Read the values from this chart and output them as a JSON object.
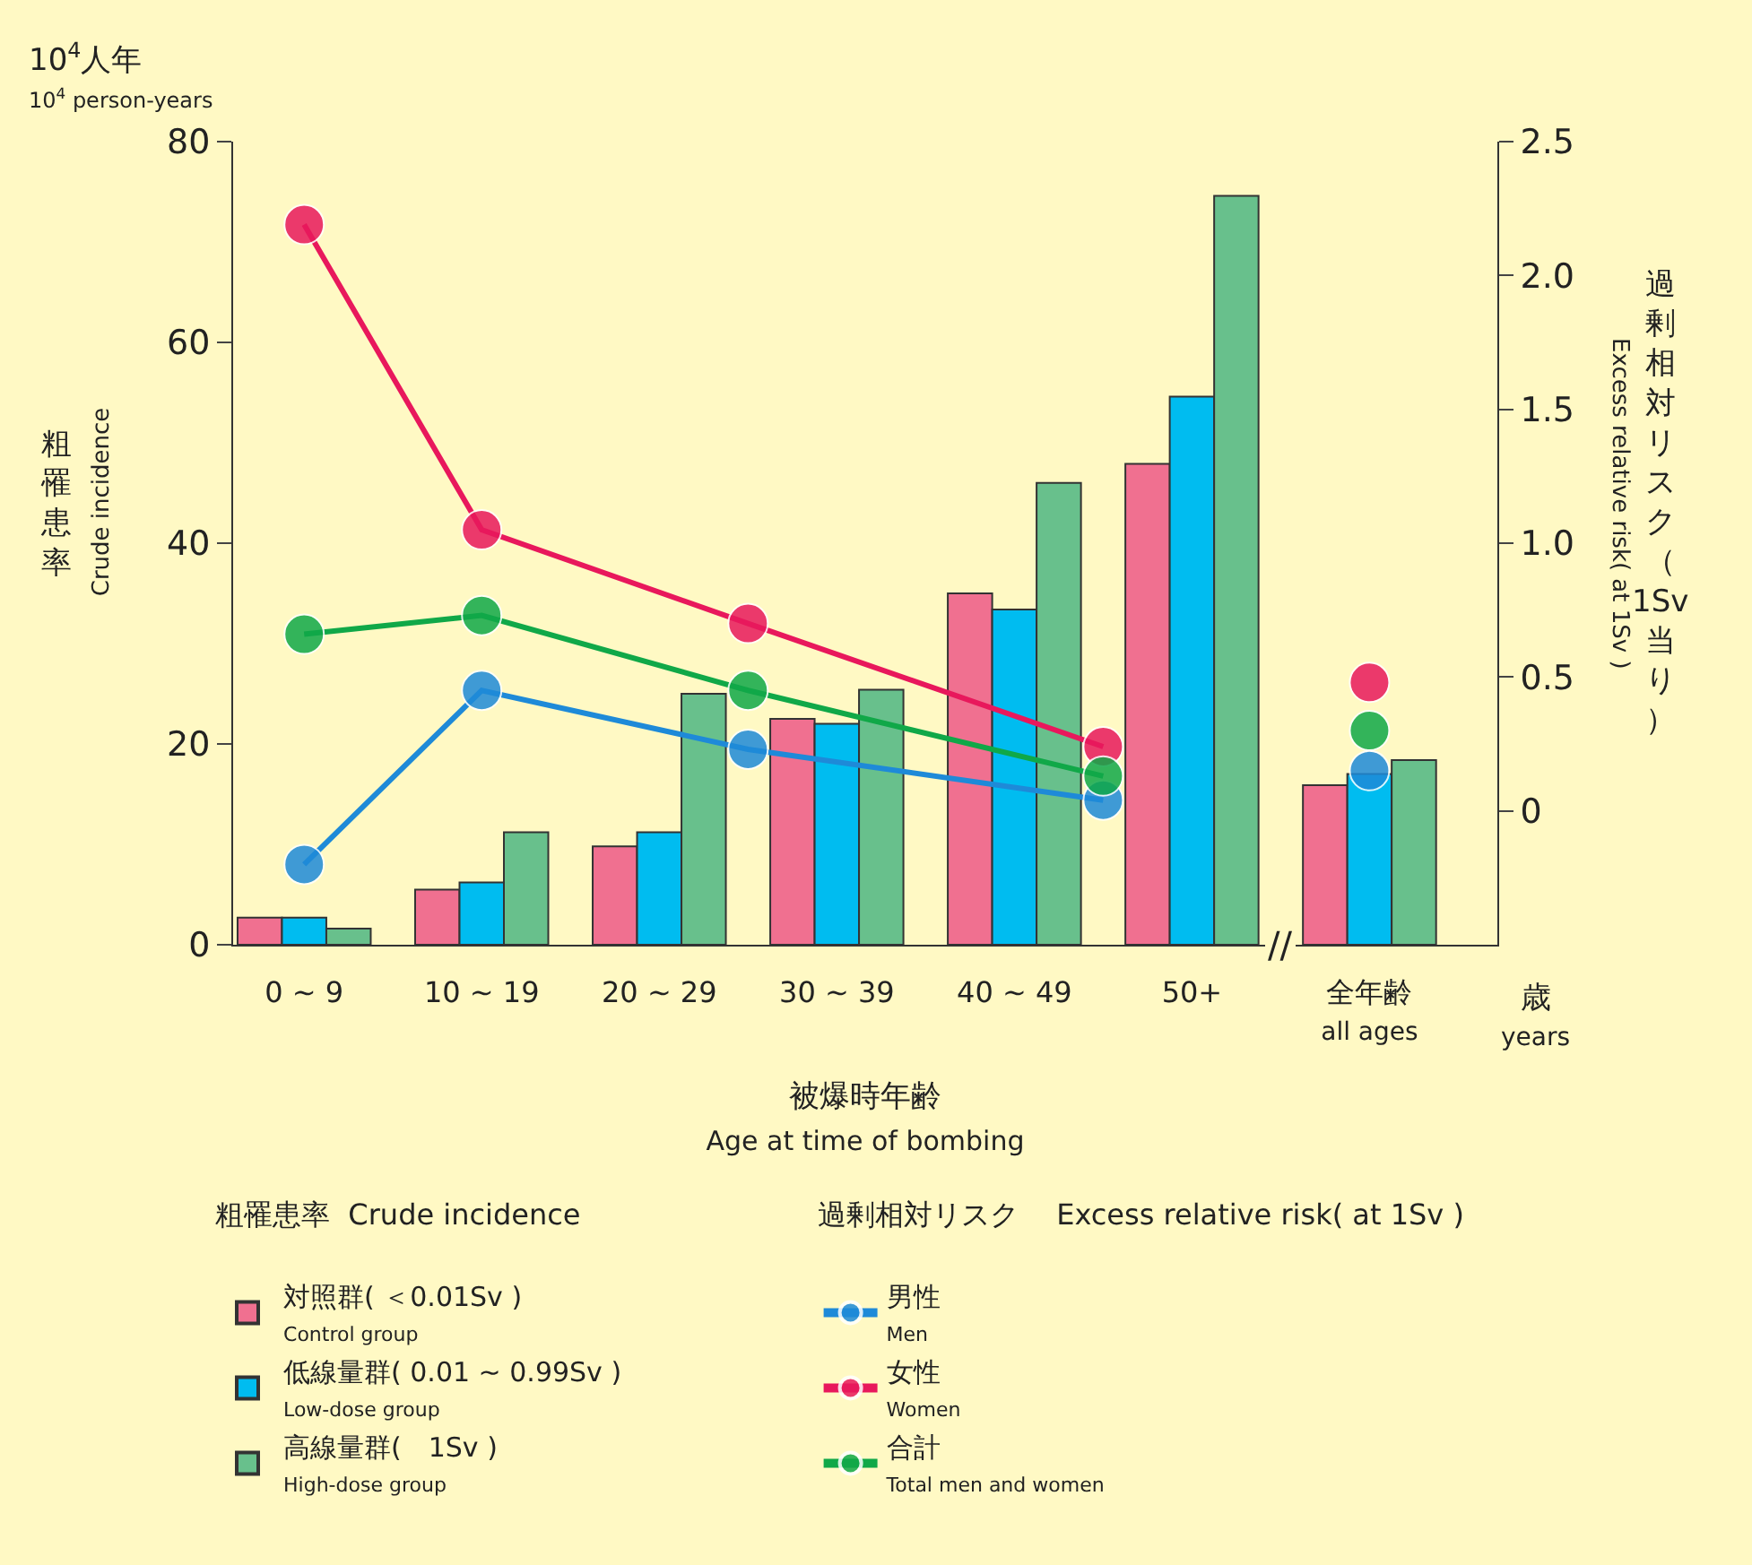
{
  "chart_data": {
    "type": "bar",
    "categories": [
      "0 ~ 9",
      null,
      "10 ~ 19",
      null,
      "20 ~ 29",
      null,
      "30 ~ 39",
      null,
      "40 ~ 49",
      null,
      "50+",
      null,
      "全年齢\nall ages"
    ],
    "ylim": [
      0,
      80
    ],
    "yticks": [
      0,
      20,
      40,
      60,
      80
    ],
    "y2lim": [
      -0.5,
      2.5
    ],
    "y2ticks": [
      {
        "value": 0,
        "label": "0"
      },
      {
        "value": 0.5,
        "label": "0.5"
      },
      {
        "value": 1,
        "label": "1.0"
      },
      {
        "value": 1.5,
        "label": "1.5"
      },
      {
        "value": 2,
        "label": "2.0"
      },
      {
        "value": 2.5,
        "label": "2.5"
      }
    ],
    "xlabel": "被爆時年齢\nAge at time of bombing",
    "ylabel": "粗罹患率\nCrude incidence",
    "y2label": "過剰相対リスク（1Sv当り）\nExcess relative risk( at 1Sv )",
    "series": [
      {
        "name": "対照群( ＜0.01Sv )\nControl group",
        "color": "#f07090",
        "values": [
          2.7,
          null,
          5.5,
          null,
          9.8,
          null,
          22.5,
          null,
          35,
          null,
          47.9,
          null,
          15.9
        ]
      },
      {
        "name": "低線量群( 0.01 ~ 0.99Sv )\nLow-dose group",
        "color": "#00bcf0",
        "values": [
          2.7,
          null,
          6.2,
          null,
          11.2,
          null,
          22,
          null,
          33.4,
          null,
          54.6,
          null,
          17
        ]
      },
      {
        "name": "高線量群(　1Sv )\nHigh-dose group",
        "color": "#68c08c",
        "values": [
          1.6,
          null,
          11.2,
          null,
          25,
          null,
          25.4,
          null,
          46,
          null,
          74.6,
          null,
          18.4
        ]
      },
      {
        "name": "男性\nMen",
        "type": "line",
        "axis": "y2",
        "color": "#1e8ad8",
        "values": [
          -0.2,
          null,
          0.45,
          null,
          null,
          0.23,
          null,
          null,
          null,
          0.04,
          null,
          null,
          null
        ]
      },
      {
        "name": "女性\nWomen",
        "type": "line",
        "axis": "y2",
        "color": "#e8185c",
        "values": [
          2.19,
          null,
          1.05,
          null,
          null,
          0.7,
          null,
          null,
          null,
          0.24,
          null,
          null,
          null
        ]
      },
      {
        "name": "合計\nTotal men and women",
        "type": "line",
        "axis": "y2",
        "color": "#10a848",
        "values": [
          0.66,
          null,
          0.73,
          null,
          null,
          0.45,
          null,
          null,
          null,
          0.13,
          null,
          null,
          null
        ]
      },
      {
        "type": "scatter",
        "axis": "y2",
        "color": "#1e8ad8",
        "values": [
          null,
          null,
          null,
          null,
          null,
          null,
          null,
          null,
          null,
          null,
          null,
          null,
          0.15
        ]
      },
      {
        "type": "scatter",
        "axis": "y2",
        "color": "#e8185c",
        "values": [
          null,
          null,
          null,
          null,
          null,
          null,
          null,
          null,
          null,
          null,
          null,
          null,
          0.48
        ]
      },
      {
        "type": "scatter",
        "axis": "y2",
        "color": "#10a848",
        "values": [
          null,
          null,
          null,
          null,
          null,
          null,
          null,
          null,
          null,
          null,
          null,
          null,
          0.3
        ]
      }
    ],
    "marker": "circle",
    "annotations": [
      "10$^{4}$人年\n10$^{4}$ person-years",
      "歳\nyears",
      "//",
      "粗罹患率  Crude incidence",
      "過剰相対リスク　 Excess relative risk( at 1Sv )"
    ],
    "legend": "bottom",
    "grid": false
  }
}
